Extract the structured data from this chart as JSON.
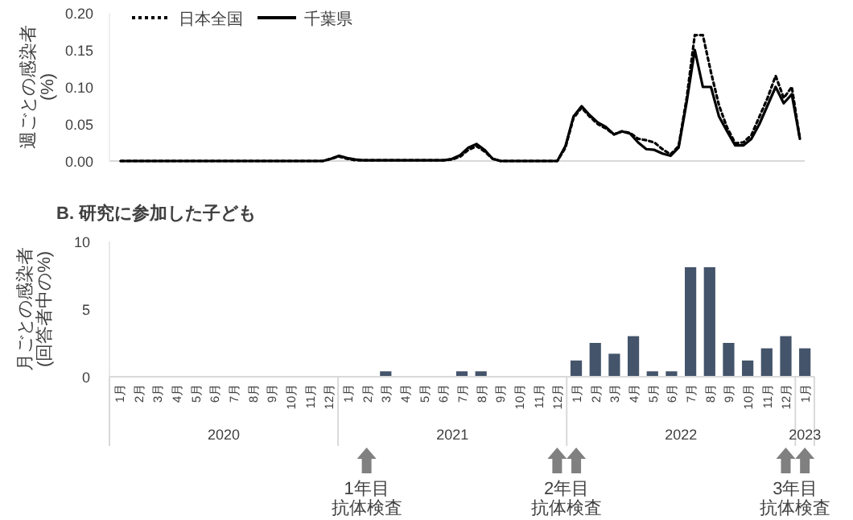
{
  "chart_data": [
    {
      "type": "line",
      "ylabel": "週ごとの感染者\n(%)",
      "tick_labels": "y",
      "legend": "top left",
      "categories": [
        null,
        null,
        null,
        null,
        null,
        null,
        null,
        null,
        null,
        null,
        null,
        null,
        null,
        null,
        null,
        null,
        null,
        null,
        null,
        null,
        null,
        null,
        null,
        null,
        null,
        null,
        null,
        null,
        null,
        null,
        null,
        null,
        null,
        null,
        null,
        null,
        null,
        null,
        null,
        null,
        null,
        null,
        null,
        null,
        null,
        null,
        null,
        null,
        null,
        null,
        null,
        null,
        null,
        null,
        null,
        null,
        null,
        null,
        null,
        null,
        null,
        null,
        null,
        null,
        null,
        null,
        null,
        null,
        null,
        null,
        null,
        null,
        null,
        null,
        null,
        null,
        null,
        null,
        null,
        null,
        null,
        null,
        null,
        null,
        null
      ],
      "ylim": [
        0,
        0.2
      ],
      "yticks": [
        {
          "value": 0,
          "label": "0.00"
        },
        {
          "value": 0.05,
          "label": "0.05"
        },
        {
          "value": 0.1,
          "label": "0.10"
        },
        {
          "value": 0.15,
          "label": "0.15"
        },
        {
          "value": 0.2,
          "label": "0.20"
        }
      ],
      "series": [
        {
          "name": "日本全国",
          "color": "#000000",
          "line_style": "dotted",
          "values": [
            0,
            0,
            0,
            0,
            0,
            0,
            0,
            0,
            0,
            0,
            0,
            0,
            0,
            0,
            0,
            0,
            0,
            0,
            0,
            0,
            0,
            0,
            0,
            0,
            0,
            0,
            0.003,
            0.006,
            0.003,
            0.001,
            0.001,
            0.001,
            0.001,
            0.001,
            0.001,
            0.001,
            0.001,
            0.001,
            0.001,
            0.001,
            0.001,
            0.002,
            0.006,
            0.015,
            0.02,
            0.013,
            0.003,
            0,
            0,
            0,
            0,
            0,
            0,
            0,
            0,
            0.018,
            0.058,
            0.072,
            0.06,
            0.05,
            0.044,
            0.036,
            0.04,
            0.038,
            0.03,
            0.028,
            0.025,
            0.016,
            0.009,
            0.02,
            0.085,
            0.17,
            0.17,
            0.12,
            0.075,
            0.045,
            0.024,
            0.025,
            0.035,
            0.06,
            0.085,
            0.115,
            0.085,
            0.1,
            0.03
          ]
        },
        {
          "name": "千葉県",
          "color": "#000000",
          "line_style": "solid",
          "values": [
            0,
            0,
            0,
            0,
            0,
            0,
            0,
            0,
            0,
            0,
            0,
            0,
            0,
            0,
            0,
            0,
            0,
            0,
            0,
            0,
            0,
            0,
            0,
            0,
            0,
            0,
            0.003,
            0.007,
            0.004,
            0.002,
            0.001,
            0.001,
            0.001,
            0.001,
            0.001,
            0.001,
            0.001,
            0.001,
            0.001,
            0.001,
            0.001,
            0.003,
            0.008,
            0.018,
            0.023,
            0.015,
            0.003,
            0,
            0,
            0,
            0,
            0,
            0,
            0,
            0,
            0.02,
            0.06,
            0.074,
            0.062,
            0.052,
            0.046,
            0.036,
            0.04,
            0.037,
            0.025,
            0.016,
            0.015,
            0.01,
            0.007,
            0.018,
            0.08,
            0.15,
            0.1,
            0.1,
            0.06,
            0.04,
            0.021,
            0.021,
            0.03,
            0.05,
            0.075,
            0.1,
            0.078,
            0.09,
            0.03
          ]
        }
      ]
    },
    {
      "type": "bar",
      "title": "B. 研究に参加した子ども",
      "ylabel": "月ごとの感染者\n(回答者中の%)",
      "categories": [
        "1月",
        "2月",
        "3月",
        "4月",
        "5月",
        "6月",
        "7月",
        "8月",
        "9月",
        "10月",
        "11月",
        "12月",
        "1月",
        "2月",
        "3月",
        "4月",
        "5月",
        "6月",
        "7月",
        "8月",
        "9月",
        "10月",
        "11月",
        "12月",
        "1月",
        "2月",
        "3月",
        "4月",
        "5月",
        "6月",
        "7月",
        "8月",
        "9月",
        "10月",
        "11月",
        "12月",
        "1月"
      ],
      "values": [
        0,
        0,
        0,
        0,
        0,
        0,
        0,
        0,
        0,
        0,
        0,
        0,
        0,
        0,
        0.4,
        0,
        0,
        0,
        0.4,
        0.4,
        0,
        0,
        0,
        0,
        1.2,
        2.5,
        1.7,
        3.0,
        0.4,
        0.4,
        8.1,
        8.1,
        2.5,
        1.2,
        2.1,
        3.0,
        2.1
      ],
      "color": "#44546a",
      "ylim": [
        0,
        10
      ],
      "yticks": [
        0,
        5,
        10
      ],
      "annotations": [
        "2020",
        "2021",
        "2022",
        "2023",
        "1年目",
        "抗体検査",
        "2年目",
        "抗体検査",
        "3年目",
        "抗体検査"
      ]
    }
  ]
}
